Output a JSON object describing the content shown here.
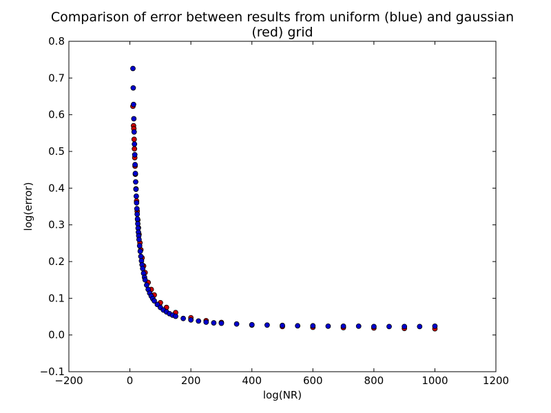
{
  "chart_data": {
    "type": "scatter",
    "title_lines": [
      "Comparison of error between results from uniform (blue) and gaussian",
      "(red) grid"
    ],
    "xlabel": "log(NR)",
    "ylabel": "log(error)",
    "xlim": [
      -200,
      1200
    ],
    "ylim": [
      -0.1,
      0.8
    ],
    "xticks": [
      -200,
      0,
      200,
      400,
      600,
      800,
      1000,
      1200
    ],
    "yticks": [
      -0.1,
      0.0,
      0.1,
      0.2,
      0.3,
      0.4,
      0.5,
      0.6,
      0.7,
      0.8
    ],
    "xtick_labels": [
      "−200",
      "0",
      "200",
      "400",
      "600",
      "800",
      "1000",
      "1200"
    ],
    "ytick_labels": [
      "−0.1",
      "0.0",
      "0.1",
      "0.2",
      "0.3",
      "0.4",
      "0.5",
      "0.6",
      "0.7",
      "0.8"
    ],
    "grid": false,
    "marker_edge_color": "#000000",
    "series": [
      {
        "color": "#cc0000",
        "x": [
          10,
          12,
          13,
          14,
          15,
          16,
          17,
          18,
          20,
          22,
          24,
          26,
          28,
          30,
          33,
          36,
          40,
          45,
          50,
          60,
          70,
          80,
          100,
          120,
          150,
          200,
          250,
          300,
          400,
          500,
          600,
          700,
          800,
          900,
          1000
        ],
        "y": [
          0.623,
          0.57,
          0.562,
          0.533,
          0.507,
          0.483,
          0.46,
          0.438,
          0.398,
          0.365,
          0.337,
          0.313,
          0.292,
          0.274,
          0.251,
          0.232,
          0.21,
          0.188,
          0.17,
          0.143,
          0.124,
          0.109,
          0.088,
          0.075,
          0.061,
          0.047,
          0.039,
          0.034,
          0.027,
          0.023,
          0.021,
          0.02,
          0.019,
          0.018,
          0.017
        ]
      },
      {
        "color": "#0000cc",
        "x": [
          10,
          11,
          12,
          13,
          14,
          15,
          16,
          17,
          18,
          19,
          20,
          21,
          22,
          23,
          24,
          25,
          26,
          27,
          28,
          29,
          30,
          32,
          34,
          36,
          38,
          40,
          42,
          45,
          48,
          50,
          55,
          60,
          65,
          70,
          75,
          80,
          90,
          100,
          110,
          120,
          130,
          140,
          150,
          175,
          200,
          225,
          250,
          275,
          300,
          350,
          400,
          450,
          500,
          550,
          600,
          650,
          700,
          750,
          800,
          850,
          900,
          950,
          1000
        ],
        "y": [
          0.726,
          0.673,
          0.628,
          0.589,
          0.553,
          0.52,
          0.491,
          0.464,
          0.44,
          0.417,
          0.397,
          0.378,
          0.36,
          0.344,
          0.329,
          0.316,
          0.303,
          0.291,
          0.28,
          0.27,
          0.26,
          0.243,
          0.228,
          0.214,
          0.202,
          0.191,
          0.181,
          0.168,
          0.157,
          0.15,
          0.136,
          0.124,
          0.114,
          0.106,
          0.099,
          0.093,
          0.083,
          0.075,
          0.068,
          0.063,
          0.058,
          0.054,
          0.051,
          0.045,
          0.041,
          0.038,
          0.035,
          0.033,
          0.032,
          0.03,
          0.028,
          0.027,
          0.026,
          0.025,
          0.025,
          0.024,
          0.024,
          0.024,
          0.023,
          0.023,
          0.023,
          0.023,
          0.024
        ]
      }
    ]
  }
}
